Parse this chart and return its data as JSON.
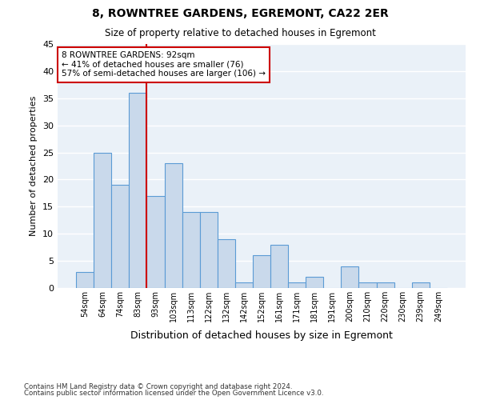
{
  "title": "8, ROWNTREE GARDENS, EGREMONT, CA22 2ER",
  "subtitle": "Size of property relative to detached houses in Egremont",
  "xlabel": "Distribution of detached houses by size in Egremont",
  "ylabel": "Number of detached properties",
  "categories": [
    "54sqm",
    "64sqm",
    "74sqm",
    "83sqm",
    "93sqm",
    "103sqm",
    "113sqm",
    "122sqm",
    "132sqm",
    "142sqm",
    "152sqm",
    "161sqm",
    "171sqm",
    "181sqm",
    "191sqm",
    "200sqm",
    "210sqm",
    "220sqm",
    "230sqm",
    "239sqm",
    "249sqm"
  ],
  "values": [
    3,
    25,
    19,
    36,
    17,
    23,
    14,
    14,
    9,
    1,
    6,
    8,
    1,
    2,
    0,
    4,
    1,
    1,
    0,
    1,
    0
  ],
  "bar_color": "#c9d9eb",
  "bar_edge_color": "#5b9bd5",
  "property_line_color": "#cc0000",
  "annotation_text": "8 ROWNTREE GARDENS: 92sqm\n← 41% of detached houses are smaller (76)\n57% of semi-detached houses are larger (106) →",
  "annotation_box_color": "#ffffff",
  "annotation_box_edge": "#cc0000",
  "ylim": [
    0,
    45
  ],
  "yticks": [
    0,
    5,
    10,
    15,
    20,
    25,
    30,
    35,
    40,
    45
  ],
  "background_color": "#eaf1f8",
  "grid_color": "#ffffff",
  "footer1": "Contains HM Land Registry data © Crown copyright and database right 2024.",
  "footer2": "Contains public sector information licensed under the Open Government Licence v3.0."
}
